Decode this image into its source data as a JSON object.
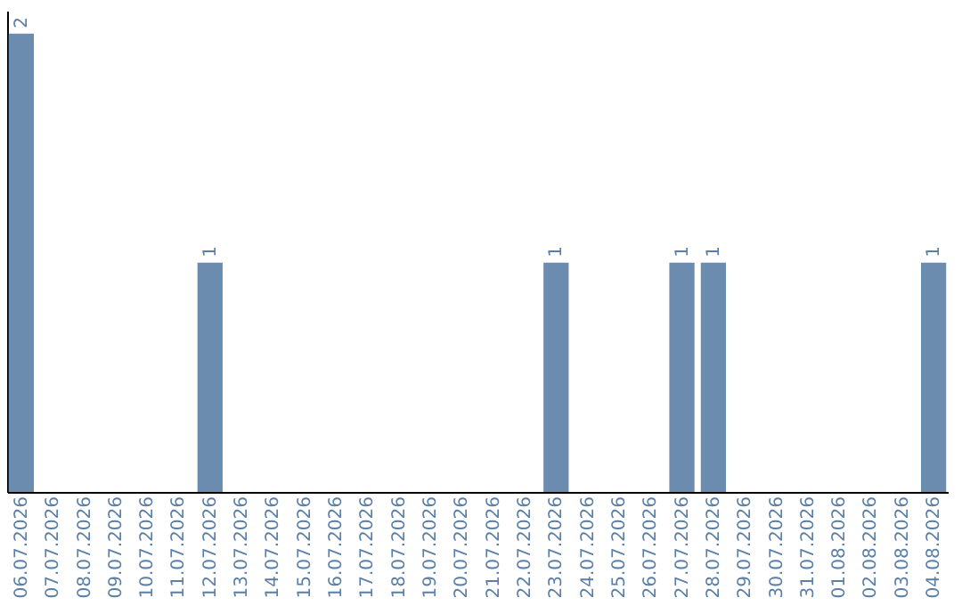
{
  "chart_data": {
    "type": "bar",
    "categories": [
      "06.07.2026",
      "07.07.2026",
      "08.07.2026",
      "09.07.2026",
      "10.07.2026",
      "11.07.2026",
      "12.07.2026",
      "13.07.2026",
      "14.07.2026",
      "15.07.2026",
      "16.07.2026",
      "17.07.2026",
      "18.07.2026",
      "19.07.2026",
      "20.07.2026",
      "21.07.2026",
      "22.07.2026",
      "23.07.2026",
      "24.07.2026",
      "25.07.2026",
      "26.07.2026",
      "27.07.2026",
      "28.07.2026",
      "29.07.2026",
      "30.07.2026",
      "31.07.2026",
      "01.08.2026",
      "02.08.2026",
      "03.08.2026",
      "04.08.2026"
    ],
    "values": [
      2,
      0,
      0,
      0,
      0,
      0,
      1,
      0,
      0,
      0,
      0,
      0,
      0,
      0,
      0,
      0,
      0,
      1,
      0,
      0,
      0,
      1,
      1,
      0,
      0,
      0,
      0,
      0,
      0,
      1
    ],
    "value_labels": [
      "2",
      null,
      null,
      null,
      null,
      null,
      "1",
      null,
      null,
      null,
      null,
      null,
      null,
      null,
      null,
      null,
      null,
      "1",
      null,
      null,
      null,
      "1",
      "1",
      null,
      null,
      null,
      null,
      null,
      null,
      "1"
    ],
    "color": "#6b8cae",
    "ylim": [
      0,
      2.1
    ],
    "grid": false,
    "tick_labels": "x"
  }
}
